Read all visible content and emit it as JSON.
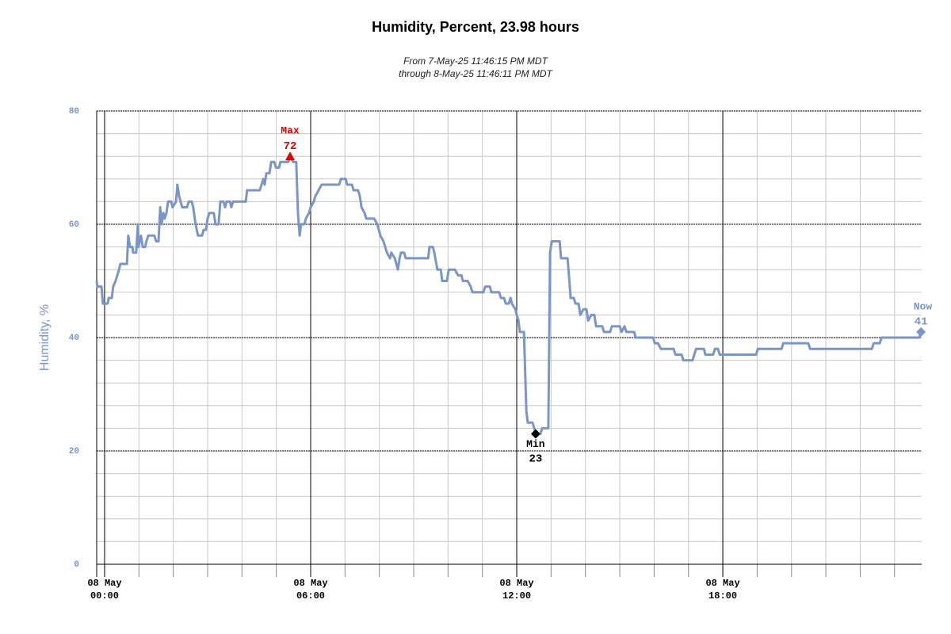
{
  "chart_data": {
    "type": "line",
    "title": "Humidity, Percent, 23.98 hours",
    "subtitle": [
      "From 7-May-25 11:46:15 PM MDT",
      "through 8-May-25 11:46:11 PM MDT"
    ],
    "ylabel": "Humidity, %",
    "xlim": [
      -0.23,
      23.79
    ],
    "xticks": [
      {
        "value": 0,
        "label": "08 May\n00:00"
      },
      {
        "value": 6,
        "label": "08 May\n06:00"
      },
      {
        "value": 12,
        "label": "08 May\n12:00"
      },
      {
        "value": 18,
        "label": "08 May\n18:00"
      }
    ],
    "ylim": [
      0,
      80
    ],
    "yticks": [
      0,
      20,
      40,
      60,
      80
    ],
    "grid": true,
    "minor_grid": {
      "x": 6,
      "y": 5
    },
    "tick_color": "#7b96c6",
    "x": [
      -0.23,
      -0.21,
      -0.09,
      -0.05,
      0.09,
      0.12,
      0.21,
      0.25,
      0.32,
      0.37,
      0.42,
      0.46,
      0.65,
      0.69,
      0.74,
      0.81,
      0.83,
      0.92,
      0.97,
      0.99,
      1.06,
      1.11,
      1.18,
      1.22,
      1.27,
      1.45,
      1.5,
      1.57,
      1.62,
      1.66,
      1.71,
      1.75,
      1.8,
      1.85,
      1.94,
      1.98,
      2.08,
      2.12,
      2.17,
      2.26,
      2.4,
      2.45,
      2.54,
      2.58,
      2.65,
      2.72,
      2.84,
      2.88,
      2.95,
      3.0,
      3.05,
      3.18,
      3.23,
      3.32,
      3.37,
      3.46,
      3.51,
      3.55,
      3.65,
      3.69,
      3.74,
      4.11,
      4.15,
      4.52,
      4.57,
      4.62,
      4.66,
      4.71,
      4.8,
      4.85,
      4.94,
      4.99,
      5.08,
      5.12,
      5.35,
      5.4,
      5.49,
      5.58,
      5.63,
      5.68,
      5.72,
      5.82,
      5.86,
      5.95,
      6.0,
      6.09,
      6.14,
      6.23,
      6.32,
      6.83,
      6.88,
      7.02,
      7.06,
      7.2,
      7.25,
      7.38,
      7.43,
      7.48,
      7.57,
      7.62,
      7.85,
      7.94,
      8.03,
      8.12,
      8.22,
      8.31,
      8.35,
      8.45,
      8.54,
      8.59,
      8.63,
      8.72,
      8.77,
      9.42,
      9.46,
      9.56,
      9.6,
      9.69,
      9.79,
      9.83,
      9.97,
      10.02,
      10.2,
      10.29,
      10.39,
      10.43,
      10.57,
      10.66,
      10.71,
      11.03,
      11.08,
      11.22,
      11.26,
      11.49,
      11.54,
      11.63,
      11.68,
      11.77,
      11.82,
      11.86,
      11.96,
      12.0,
      12.05,
      12.09,
      12.21,
      12.28,
      12.32,
      12.46,
      12.51,
      12.55,
      12.69,
      12.74,
      12.92,
      12.97,
      13.02,
      13.25,
      13.29,
      13.48,
      13.52,
      13.57,
      13.66,
      13.71,
      13.8,
      13.85,
      13.94,
      14.03,
      14.08,
      14.17,
      14.26,
      14.31,
      14.49,
      14.54,
      14.72,
      14.77,
      15.0,
      15.05,
      15.14,
      15.19,
      15.42,
      15.46,
      15.97,
      16.02,
      16.11,
      16.2,
      16.57,
      16.62,
      16.8,
      16.85,
      17.12,
      17.22,
      17.45,
      17.49,
      17.72,
      17.77,
      17.86,
      17.91,
      18.97,
      19.02,
      19.71,
      19.76,
      20.49,
      20.54,
      22.34,
      22.39,
      22.57,
      22.62,
      23.72,
      23.77
    ],
    "series": [
      {
        "color": "#7b96c6",
        "values": [
          50,
          49,
          49,
          46,
          46,
          47,
          47,
          49,
          50,
          51,
          52,
          53,
          53,
          58,
          56,
          56,
          55,
          55,
          60,
          56,
          58,
          56,
          56,
          57,
          58,
          58,
          57,
          57,
          63,
          60,
          62,
          61,
          62,
          64,
          64,
          63,
          64,
          67,
          65,
          63,
          63,
          64,
          64,
          63,
          60,
          58,
          58,
          59,
          59,
          61,
          62,
          62,
          60,
          60,
          64,
          64,
          63,
          64,
          64,
          63,
          64,
          64,
          66,
          66,
          67,
          68,
          67,
          69,
          69,
          71,
          71,
          70,
          70,
          71,
          71,
          72,
          71,
          71,
          62,
          58,
          60,
          60,
          61,
          62,
          63,
          64,
          65,
          66,
          67,
          67,
          68,
          68,
          67,
          67,
          66,
          66,
          65,
          63,
          62,
          61,
          61,
          60,
          58,
          57,
          55,
          54,
          55,
          54,
          52,
          54,
          55,
          55,
          54,
          54,
          56,
          56,
          55,
          52,
          52,
          50,
          50,
          52,
          52,
          51,
          51,
          50,
          50,
          49,
          48,
          48,
          49,
          49,
          48,
          48,
          47,
          47,
          46,
          46,
          47,
          46,
          45,
          44,
          43,
          41,
          41,
          27,
          25,
          25,
          24,
          23,
          23,
          24,
          24,
          55,
          57,
          57,
          54,
          54,
          51,
          47,
          47,
          46,
          46,
          44,
          45,
          45,
          43,
          44,
          44,
          42,
          42,
          41,
          41,
          42,
          42,
          41,
          42,
          41,
          41,
          40,
          40,
          39,
          39,
          38,
          38,
          37,
          37,
          36,
          36,
          38,
          38,
          37,
          37,
          38,
          38,
          37,
          37,
          38,
          38,
          39,
          39,
          38,
          38,
          39,
          39,
          40,
          40,
          41
        ]
      }
    ],
    "annotations": [
      {
        "label": "Max",
        "x": 5.4,
        "value": 72,
        "color": "#e00000",
        "marker": "triangle",
        "placement": "above"
      },
      {
        "label": "Min",
        "x": 12.55,
        "value": 23,
        "color": "#000000",
        "marker": "diamond",
        "placement": "below"
      },
      {
        "label": "Now",
        "x": 23.77,
        "value": 41,
        "color": "#7b96c6",
        "marker": "diamond",
        "placement": "above"
      }
    ]
  }
}
